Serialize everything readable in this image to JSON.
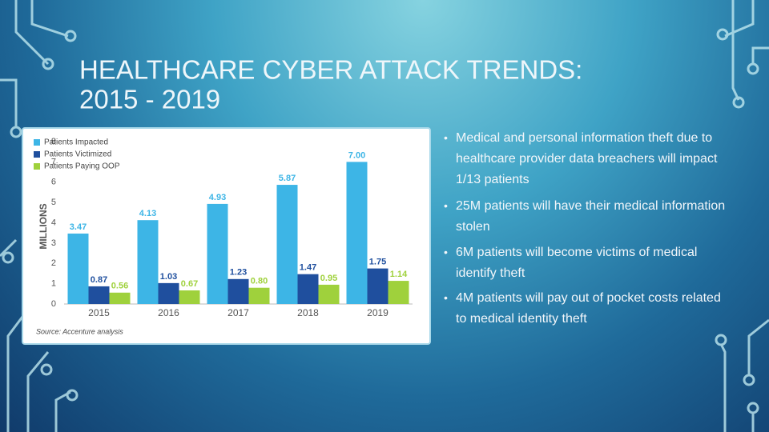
{
  "slide": {
    "title": [
      "HEALTHCARE CYBER ATTACK TRENDS:",
      "2015 - 2019"
    ],
    "bullets": [
      "Medical and personal information theft due to healthcare provider data breachers will impact 1/13 patients",
      "25M patients will have their medical information stolen",
      "6M patients will become victims of medical identify theft",
      "4M patients will pay out of pocket costs related to medical identity theft"
    ]
  },
  "chart_data": {
    "type": "bar",
    "y_label": "MILLIONS",
    "source": "Source: Accenture analysis",
    "categories": [
      "2015",
      "2016",
      "2017",
      "2018",
      "2019"
    ],
    "series": [
      {
        "name": "Patients Impacted",
        "color": "#3db5e6",
        "values": [
          3.47,
          4.13,
          4.93,
          5.87,
          7
        ],
        "value_labels": [
          "3.47",
          "4.13",
          "4.93",
          "5.87",
          "7.00"
        ]
      },
      {
        "name": "Patients Victimized",
        "color": "#1f4f9e",
        "values": [
          0.87,
          1.03,
          1.23,
          1.47,
          1.75
        ],
        "value_labels": [
          "0.87",
          "1.03",
          "1.23",
          "1.47",
          "1.75"
        ]
      },
      {
        "name": "Patients Paying OOP",
        "color": "#9fd13c",
        "values": [
          0.56,
          0.67,
          0.8,
          0.95,
          1.14
        ],
        "value_labels": [
          "0.56",
          "0.67",
          "0.80",
          "0.95",
          "1.14"
        ]
      }
    ],
    "ylim": [
      0,
      8
    ],
    "yticks": [
      0,
      1,
      2,
      3,
      4,
      5,
      6,
      7,
      8
    ],
    "legend": "top-left",
    "grid": false
  }
}
